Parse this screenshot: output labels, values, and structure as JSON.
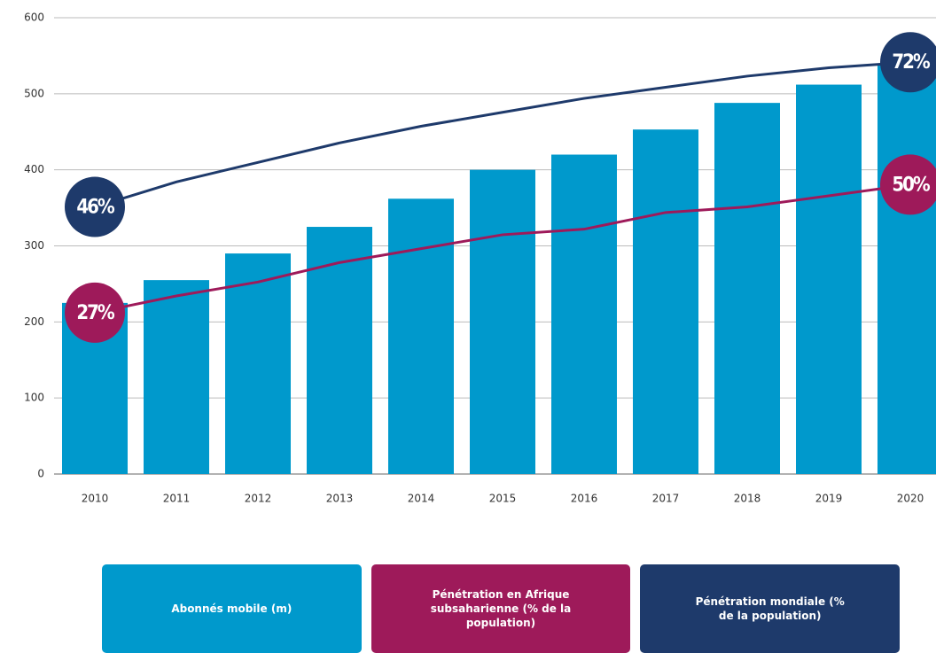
{
  "chart_data": {
    "type": "bar",
    "categories": [
      "2010",
      "2011",
      "2012",
      "2013",
      "2014",
      "2015",
      "2016",
      "2017",
      "2018",
      "2019",
      "2020"
    ],
    "ylim": [
      0,
      600
    ],
    "yticks": [
      0,
      100,
      200,
      300,
      400,
      500,
      600
    ],
    "grid": true,
    "y2lim": [
      -2,
      80
    ],
    "series": [
      {
        "name": "Abonnés mobile (m)",
        "type": "bar",
        "color": "#0099cc",
        "values": [
          225,
          255,
          290,
          325,
          362,
          400,
          420,
          453,
          488,
          512,
          540
        ]
      },
      {
        "name": "Pénétration en Afrique subsaharienne (% de la population)",
        "type": "line",
        "axis": "y2",
        "color": "#9e1a5a",
        "values": [
          27,
          30,
          32.5,
          36,
          38.5,
          41,
          42,
          45,
          46,
          48,
          50
        ],
        "value_labels": [
          "27%",
          null,
          null,
          null,
          null,
          null,
          null,
          null,
          null,
          null,
          "50%"
        ]
      },
      {
        "name": "Pénétration mondiale (% de la population)",
        "type": "line",
        "axis": "y2",
        "color": "#1e3a6b",
        "values": [
          46,
          50.5,
          54,
          57.5,
          60.5,
          63,
          65.5,
          67.5,
          69.5,
          71,
          72
        ],
        "value_labels": [
          "46%",
          null,
          null,
          null,
          null,
          null,
          null,
          null,
          null,
          null,
          "72%"
        ]
      }
    ],
    "legend": "bottom"
  }
}
